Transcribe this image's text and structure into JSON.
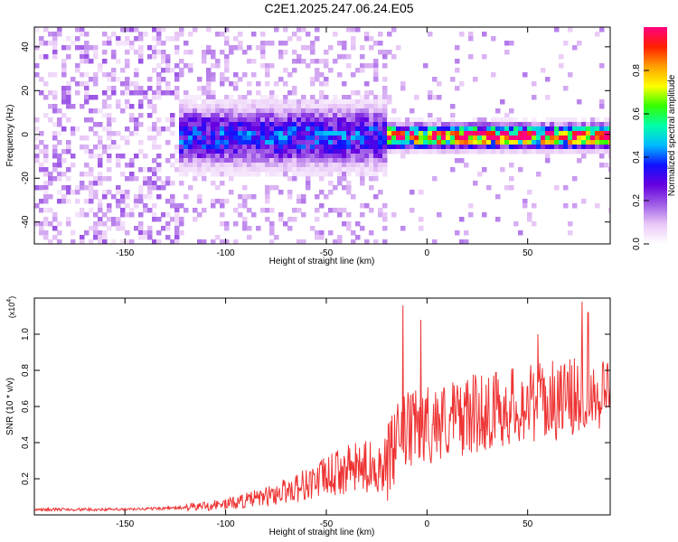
{
  "figure_title": "C2E1.2025.247.06.24.E05",
  "chart_data": [
    {
      "type": "heatmap",
      "title": "C2E1.2025.247.06.24.E05",
      "xlabel": "Height of straight line (km)",
      "ylabel": "Frequency (Hz)",
      "xlim": [
        -195,
        91
      ],
      "ylim": [
        -50,
        49
      ],
      "xticks": [
        -150,
        -100,
        -50,
        0,
        50
      ],
      "yticks": [
        -40,
        -20,
        0,
        20,
        40
      ],
      "colorbar": {
        "label": "Normalized spectral amplitude",
        "range": [
          0.0,
          1.0
        ],
        "ticks": [
          0.0,
          0.2,
          0.4,
          0.6,
          0.8
        ],
        "tick_labels": [
          "0.0",
          "0.2",
          "0.4",
          "0.6",
          "0.8"
        ],
        "colormap": [
          "#ffffff",
          "#e9c8f7",
          "#a05de6",
          "#6600e0",
          "#1010ff",
          "#00bbff",
          "#00ffaa",
          "#33ff00",
          "#ffff00",
          "#ffa000",
          "#ff2000",
          "#ff0080"
        ]
      },
      "regions": [
        {
          "x_range": [
            -195,
            -125
          ],
          "freq_spread": 50,
          "amplitude": 0.12,
          "description": "scattered noise"
        },
        {
          "x_range": [
            -125,
            -20
          ],
          "freq_spread": 8,
          "amplitude": 0.35,
          "description": "dense band"
        },
        {
          "x_range": [
            -20,
            91
          ],
          "freq_spread": 3,
          "amplitude": 0.9,
          "description": "narrow strong line"
        }
      ]
    },
    {
      "type": "line",
      "xlabel": "Height of straight line (km)",
      "ylabel": "SNR (10 * v/v)",
      "y_multiplier": "(x10",
      "y_multiplier_exp": "4",
      "xlim": [
        -195,
        91
      ],
      "ylim": [
        0.0,
        1.2
      ],
      "xticks": [
        -150,
        -100,
        -50,
        0,
        50
      ],
      "yticks": [
        0.2,
        0.4,
        0.6,
        0.8,
        1.0
      ],
      "ytick_labels": [
        "0.2",
        "0.4",
        "0.6",
        "0.8",
        "1.0"
      ],
      "line_color": "#ee3333",
      "trend": [
        {
          "x": -195,
          "y": 0.03
        },
        {
          "x": -150,
          "y": 0.03
        },
        {
          "x": -120,
          "y": 0.04
        },
        {
          "x": -100,
          "y": 0.06
        },
        {
          "x": -80,
          "y": 0.1
        },
        {
          "x": -60,
          "y": 0.17
        },
        {
          "x": -40,
          "y": 0.25
        },
        {
          "x": -20,
          "y": 0.28
        },
        {
          "x": -12,
          "y": 0.45
        },
        {
          "x": 0,
          "y": 0.5
        },
        {
          "x": 20,
          "y": 0.55
        },
        {
          "x": 40,
          "y": 0.6
        },
        {
          "x": 60,
          "y": 0.63
        },
        {
          "x": 80,
          "y": 0.66
        },
        {
          "x": 91,
          "y": 0.7
        }
      ],
      "peaks": [
        {
          "x": -12,
          "y": 1.16
        },
        {
          "x": 77,
          "y": 1.18
        },
        {
          "x": 80,
          "y": 1.12
        },
        {
          "x": -3,
          "y": 1.08
        },
        {
          "x": 55,
          "y": 1.0
        }
      ]
    }
  ]
}
